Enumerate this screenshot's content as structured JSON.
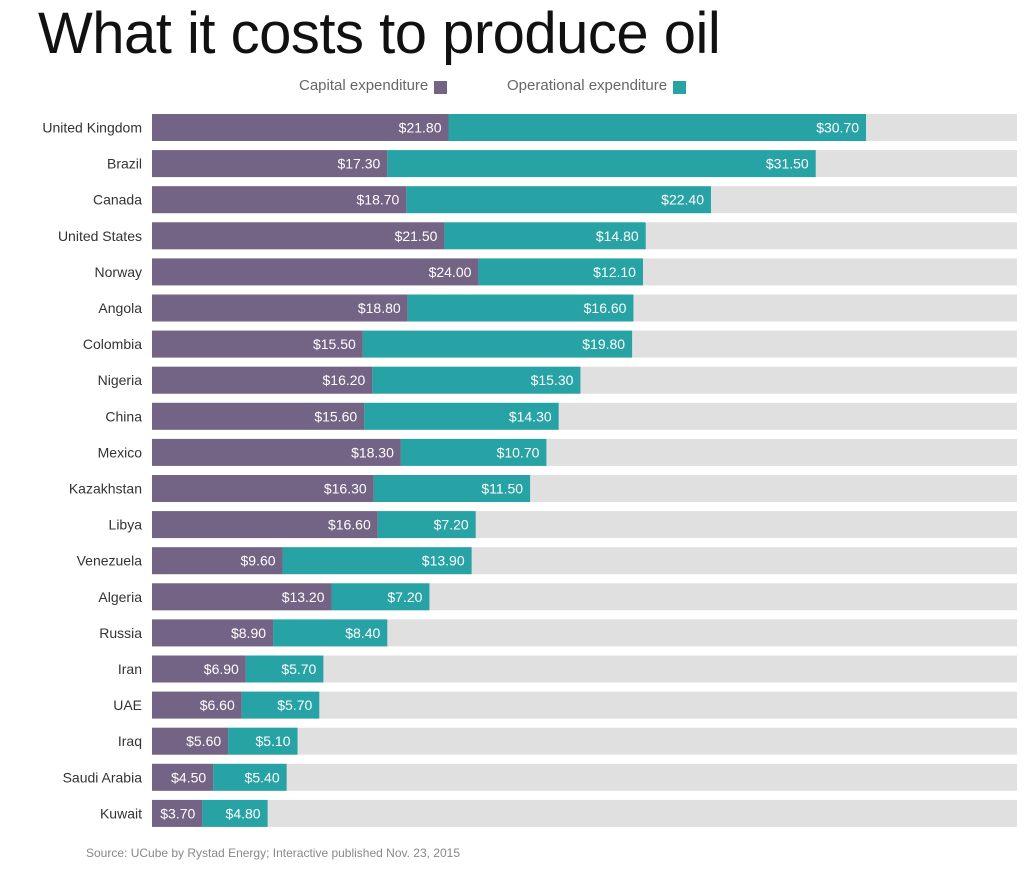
{
  "chart_data": {
    "type": "bar",
    "orientation": "horizontal",
    "stacked": true,
    "title": "What it costs to produce oil",
    "categories": [
      "United Kingdom",
      "Brazil",
      "Canada",
      "United States",
      "Norway",
      "Angola",
      "Colombia",
      "Nigeria",
      "China",
      "Mexico",
      "Kazakhstan",
      "Libya",
      "Venezuela",
      "Algeria",
      "Russia",
      "Iran",
      "UAE",
      "Iraq",
      "Saudi Arabia",
      "Kuwait"
    ],
    "series": [
      {
        "name": "Capital expenditure",
        "color": "#736384",
        "values": [
          21.8,
          17.3,
          18.7,
          21.5,
          24.0,
          18.8,
          15.5,
          16.2,
          15.6,
          18.3,
          16.3,
          16.6,
          9.6,
          13.2,
          8.9,
          6.9,
          6.6,
          5.6,
          4.5,
          3.7
        ],
        "labels": [
          "$21.80",
          "$17.30",
          "$18.70",
          "$21.50",
          "$24.00",
          "$18.80",
          "$15.50",
          "$16.20",
          "$15.60",
          "$18.30",
          "$16.30",
          "$16.60",
          "$9.60",
          "$13.20",
          "$8.90",
          "$6.90",
          "$6.60",
          "$5.60",
          "$4.50",
          "$3.70"
        ]
      },
      {
        "name": "Operational expenditure",
        "color": "#27a3a5",
        "values": [
          30.7,
          31.5,
          22.4,
          14.8,
          12.1,
          16.6,
          19.8,
          15.3,
          14.3,
          10.7,
          11.5,
          7.2,
          13.9,
          7.2,
          8.4,
          5.7,
          5.7,
          5.1,
          5.4,
          4.8
        ],
        "labels": [
          "$30.70",
          "$31.50",
          "$22.40",
          "$14.80",
          "$12.10",
          "$16.60",
          "$19.80",
          "$15.30",
          "$14.30",
          "$10.70",
          "$11.50",
          "$7.20",
          "$13.90",
          "$7.20",
          "$8.40",
          "$5.70",
          "$5.70",
          "$5.10",
          "$5.40",
          "$4.80"
        ]
      }
    ],
    "xlim": [
      0,
      63.6
    ],
    "background_track_color": "#e0e0e0",
    "grid": false,
    "legend_placement": "top"
  },
  "source": "Source: UCube by Rystad Energy; Interactive published Nov. 23, 2015"
}
